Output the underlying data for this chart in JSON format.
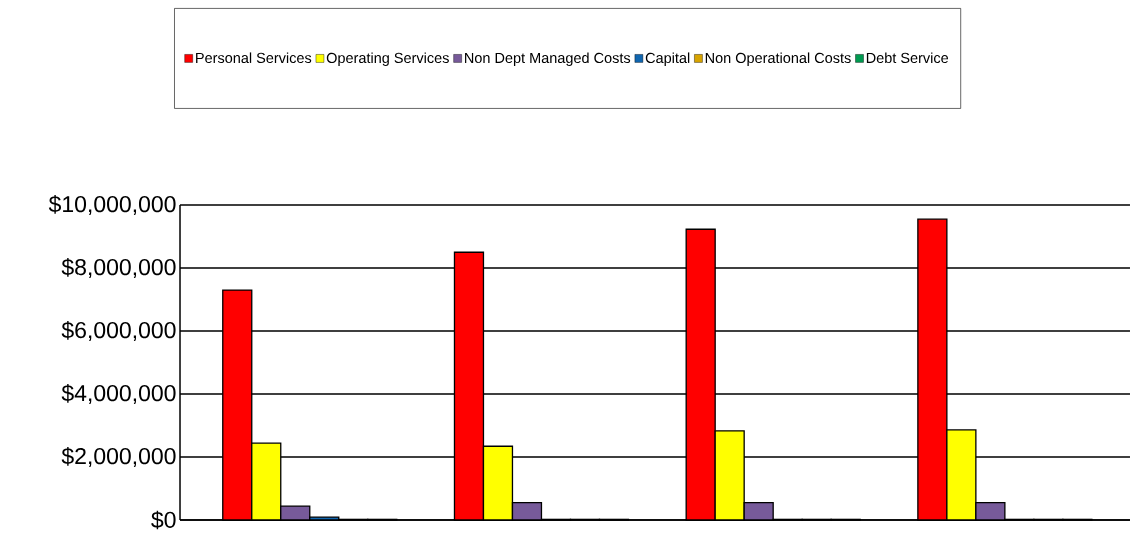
{
  "chart_data": {
    "type": "bar",
    "categories": [
      null,
      null,
      null,
      null
    ],
    "series": [
      {
        "name": "Personal Services",
        "color": "#ff0000",
        "values": [
          7300000,
          8500000,
          9230000,
          9550000
        ]
      },
      {
        "name": "Operating Services",
        "color": "#ffff00",
        "values": [
          2440000,
          2340000,
          2830000,
          2860000
        ]
      },
      {
        "name": "Non Dept Managed Costs",
        "color": "#775a9a",
        "values": [
          440000,
          550000,
          550000,
          550000
        ]
      },
      {
        "name": "Capital",
        "color": "#1066b0",
        "values": [
          90000,
          20000,
          20000,
          20000
        ]
      },
      {
        "name": "Non Operational Costs",
        "color": "#d8a400",
        "values": [
          20000,
          20000,
          20000,
          20000
        ]
      },
      {
        "name": "Debt Service",
        "color": "#009a50",
        "values": [
          20000,
          20000,
          20000,
          20000
        ]
      }
    ],
    "ylim": [
      0,
      10000000
    ],
    "yticks": [
      {
        "value": 0,
        "label": "$0"
      },
      {
        "value": 2000000,
        "label": "$2,000,000"
      },
      {
        "value": 4000000,
        "label": "$4,000,000"
      },
      {
        "value": 6000000,
        "label": "$6,000,000"
      },
      {
        "value": 8000000,
        "label": "$8,000,000"
      },
      {
        "value": 10000000,
        "label": "$10,000,000"
      }
    ],
    "grid": "y",
    "legend": "top",
    "tick_labels": "y"
  }
}
